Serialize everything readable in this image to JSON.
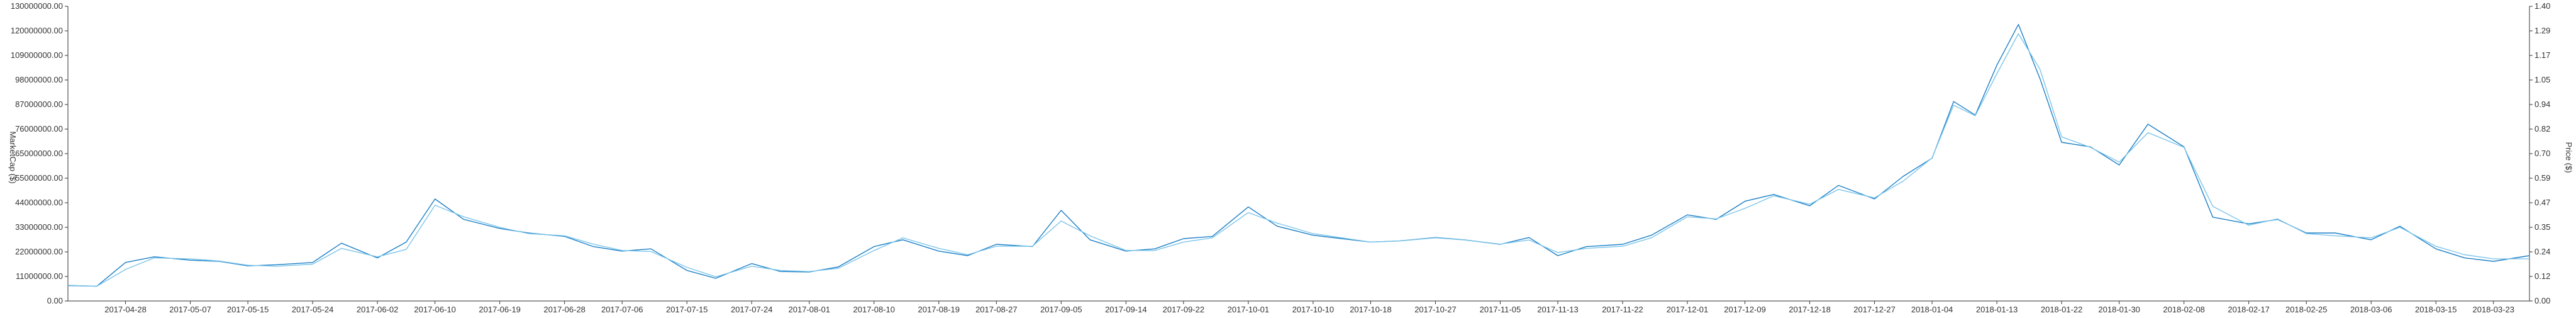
{
  "chart_data": {
    "type": "line",
    "title": "",
    "x_tick_labels": [
      "2017-04-28",
      "2017-05-07",
      "2017-05-15",
      "2017-05-24",
      "2017-06-02",
      "2017-06-10",
      "2017-06-19",
      "2017-06-28",
      "2017-07-06",
      "2017-07-15",
      "2017-07-24",
      "2017-08-01",
      "2017-08-10",
      "2017-08-19",
      "2017-08-27",
      "2017-09-05",
      "2017-09-14",
      "2017-09-22",
      "2017-10-01",
      "2017-10-10",
      "2017-10-18",
      "2017-10-27",
      "2017-11-05",
      "2017-11-13",
      "2017-11-22",
      "2017-12-01",
      "2017-12-09",
      "2017-12-18",
      "2017-12-27",
      "2018-01-04",
      "2018-01-13",
      "2018-01-22",
      "2018-01-30",
      "2018-02-08",
      "2018-02-17",
      "2018-02-25",
      "2018-03-06",
      "2018-03-15",
      "2018-03-23"
    ],
    "y_left": {
      "label": "MarketCap ($)",
      "range": [
        0,
        130000000
      ],
      "tick_labels": [
        "0.00",
        "11000000.00",
        "22000000.00",
        "33000000.00",
        "44000000.00",
        "55000000.00",
        "65000000.00",
        "76000000.00",
        "87000000.00",
        "98000000.00",
        "109000000.00",
        "120000000.00",
        "130000000.00"
      ]
    },
    "y_right": {
      "label": "Price ($)",
      "range": [
        0,
        1.4
      ],
      "tick_labels": [
        "0.00",
        "0.12",
        "0.24",
        "0.35",
        "0.47",
        "0.59",
        "0.70",
        "0.82",
        "0.94",
        "1.05",
        "1.17",
        "1.29",
        "1.40"
      ]
    },
    "series": [
      {
        "axis": "left",
        "color": "#1c7fc6",
        "x": [
          "2017-04-20",
          "2017-04-24",
          "2017-04-28",
          "2017-05-02",
          "2017-05-07",
          "2017-05-11",
          "2017-05-15",
          "2017-05-19",
          "2017-05-24",
          "2017-05-28",
          "2017-06-02",
          "2017-06-06",
          "2017-06-10",
          "2017-06-14",
          "2017-06-19",
          "2017-06-23",
          "2017-06-28",
          "2017-07-02",
          "2017-07-06",
          "2017-07-10",
          "2017-07-15",
          "2017-07-19",
          "2017-07-24",
          "2017-07-28",
          "2017-08-01",
          "2017-08-05",
          "2017-08-10",
          "2017-08-14",
          "2017-08-19",
          "2017-08-23",
          "2017-08-27",
          "2017-09-01",
          "2017-09-05",
          "2017-09-09",
          "2017-09-14",
          "2017-09-18",
          "2017-09-22",
          "2017-09-26",
          "2017-10-01",
          "2017-10-05",
          "2017-10-10",
          "2017-10-14",
          "2017-10-18",
          "2017-10-22",
          "2017-10-27",
          "2017-10-31",
          "2017-11-05",
          "2017-11-09",
          "2017-11-13",
          "2017-11-17",
          "2017-11-22",
          "2017-11-26",
          "2017-12-01",
          "2017-12-05",
          "2017-12-09",
          "2017-12-13",
          "2017-12-18",
          "2017-12-22",
          "2017-12-27",
          "2017-12-31",
          "2018-01-04",
          "2018-01-07",
          "2018-01-10",
          "2018-01-13",
          "2018-01-16",
          "2018-01-19",
          "2018-01-22",
          "2018-01-26",
          "2018-01-30",
          "2018-02-03",
          "2018-02-08",
          "2018-02-12",
          "2018-02-17",
          "2018-02-21",
          "2018-02-25",
          "2018-03-01",
          "2018-03-06",
          "2018-03-10",
          "2018-03-15",
          "2018-03-19",
          "2018-03-23",
          "2018-03-28"
        ],
        "values": [
          6800000,
          6500000,
          17000000,
          19500000,
          18000000,
          17500000,
          15500000,
          16000000,
          17000000,
          25500000,
          19000000,
          26000000,
          45000000,
          36000000,
          32000000,
          30000000,
          28500000,
          24000000,
          22000000,
          23000000,
          13500000,
          10000000,
          16500000,
          13000000,
          12800000,
          15000000,
          24000000,
          27000000,
          22000000,
          20000000,
          25000000,
          24000000,
          40000000,
          27000000,
          22000000,
          23000000,
          27500000,
          28500000,
          41500000,
          33000000,
          29000000,
          27500000,
          26000000,
          26500000,
          28000000,
          27000000,
          25000000,
          28000000,
          20000000,
          24000000,
          25000000,
          29000000,
          38000000,
          36000000,
          44000000,
          47000000,
          42000000,
          51000000,
          45000000,
          55000000,
          63000000,
          88000000,
          82000000,
          104000000,
          122000000,
          98000000,
          70000000,
          68000000,
          60000000,
          78000000,
          68000000,
          37000000,
          34000000,
          36000000,
          30000000,
          30000000,
          27000000,
          33000000,
          23000000,
          19000000,
          17500000,
          20000000
        ]
      },
      {
        "axis": "right",
        "color": "#7dc5ea",
        "x": [
          "2017-04-20",
          "2017-04-24",
          "2017-04-28",
          "2017-05-02",
          "2017-05-07",
          "2017-05-11",
          "2017-05-15",
          "2017-05-19",
          "2017-05-24",
          "2017-05-28",
          "2017-06-02",
          "2017-06-06",
          "2017-06-10",
          "2017-06-14",
          "2017-06-19",
          "2017-06-23",
          "2017-06-28",
          "2017-07-02",
          "2017-07-06",
          "2017-07-10",
          "2017-07-15",
          "2017-07-19",
          "2017-07-24",
          "2017-07-28",
          "2017-08-01",
          "2017-08-05",
          "2017-08-10",
          "2017-08-14",
          "2017-08-19",
          "2017-08-23",
          "2017-08-27",
          "2017-09-01",
          "2017-09-05",
          "2017-09-09",
          "2017-09-14",
          "2017-09-18",
          "2017-09-22",
          "2017-09-26",
          "2017-10-01",
          "2017-10-05",
          "2017-10-10",
          "2017-10-14",
          "2017-10-18",
          "2017-10-22",
          "2017-10-27",
          "2017-10-31",
          "2017-11-05",
          "2017-11-09",
          "2017-11-13",
          "2017-11-17",
          "2017-11-22",
          "2017-11-26",
          "2017-12-01",
          "2017-12-05",
          "2017-12-09",
          "2017-12-13",
          "2017-12-18",
          "2017-12-22",
          "2017-12-27",
          "2017-12-31",
          "2018-01-04",
          "2018-01-07",
          "2018-01-10",
          "2018-01-13",
          "2018-01-16",
          "2018-01-19",
          "2018-01-22",
          "2018-01-26",
          "2018-01-30",
          "2018-02-03",
          "2018-02-08",
          "2018-02-12",
          "2018-02-17",
          "2018-02-21",
          "2018-02-25",
          "2018-03-01",
          "2018-03-06",
          "2018-03-10",
          "2018-03-15",
          "2018-03-19",
          "2018-03-23",
          "2018-03-28"
        ],
        "values": [
          0.075,
          0.07,
          0.15,
          0.205,
          0.2,
          0.19,
          0.17,
          0.165,
          0.175,
          0.25,
          0.21,
          0.245,
          0.455,
          0.4,
          0.35,
          0.32,
          0.31,
          0.27,
          0.24,
          0.235,
          0.16,
          0.115,
          0.165,
          0.145,
          0.14,
          0.155,
          0.24,
          0.3,
          0.25,
          0.22,
          0.26,
          0.26,
          0.38,
          0.31,
          0.24,
          0.24,
          0.28,
          0.3,
          0.42,
          0.37,
          0.32,
          0.3,
          0.28,
          0.285,
          0.3,
          0.29,
          0.27,
          0.29,
          0.23,
          0.25,
          0.26,
          0.3,
          0.4,
          0.39,
          0.44,
          0.5,
          0.46,
          0.53,
          0.49,
          0.57,
          0.68,
          0.93,
          0.88,
          1.08,
          1.27,
          1.1,
          0.78,
          0.73,
          0.66,
          0.8,
          0.73,
          0.45,
          0.36,
          0.39,
          0.32,
          0.31,
          0.3,
          0.35,
          0.26,
          0.22,
          0.2,
          0.2
        ]
      }
    ]
  }
}
